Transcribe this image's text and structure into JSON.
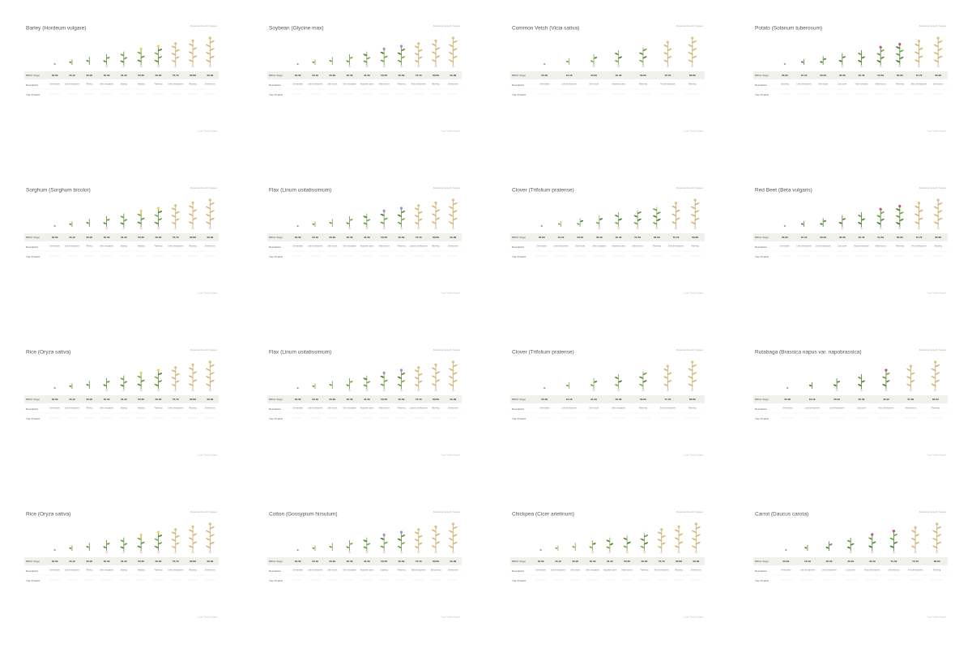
{
  "subtitle": "Botanical Growth Stages",
  "row_labels": [
    "BBCH Stage",
    "Description",
    "Your Product"
  ],
  "footer": "Crop Growth Stages",
  "panels": [
    {
      "title": "Barley (Hordeum vulgare)",
      "codes": [
        "00-09",
        "10-19",
        "20-29",
        "30-39",
        "40-49",
        "50-59",
        "60-69",
        "70-79",
        "80-89",
        "90-99"
      ],
      "descriptions": [
        "Germination",
        "Leaf development",
        "Tillering",
        "Stem elongation",
        "Booting",
        "Heading",
        "Flowering",
        "Grain development",
        "Ripening",
        "Senescence"
      ]
    },
    {
      "title": "Soybean (Glycine max)",
      "codes": [
        "00-09",
        "10-19",
        "20-29",
        "30-39",
        "40-49",
        "50-59",
        "60-69",
        "70-79",
        "80-89",
        "90-99"
      ],
      "descriptions": [
        "Germination",
        "Leaf development",
        "Side shoots",
        "Stem elongation",
        "Vegetative parts",
        "Inflorescence",
        "Flowering",
        "Pod development",
        "Ripening",
        "Senescence"
      ]
    },
    {
      "title": "Common Vetch (Vicia sativa)",
      "codes": [
        "00-09",
        "10-19",
        "20-29",
        "40-49",
        "60-69",
        "70-79",
        "80-89"
      ],
      "descriptions": [
        "Germination",
        "Leaf development",
        "Side shoots",
        "Vegetative parts",
        "Flowering",
        "Pod development",
        "Ripening"
      ]
    },
    {
      "title": "Potato (Solanum tuberosum)",
      "codes": [
        "00-09",
        "10-19",
        "20-29",
        "30-39",
        "40-49",
        "50-59",
        "60-69",
        "70-79",
        "90-99"
      ],
      "descriptions": [
        "Sprouting",
        "Leaf development",
        "Side shoots",
        "Crop cover",
        "Tuber formation",
        "Inflorescence",
        "Flowering",
        "Berry development",
        "Senescence"
      ]
    },
    {
      "title": "Sorghum (Sorghum bicolor)",
      "codes": [
        "00-09",
        "10-19",
        "20-29",
        "30-39",
        "40-49",
        "50-59",
        "60-69",
        "70-79",
        "80-89",
        "90-99"
      ],
      "descriptions": [
        "Germination",
        "Leaf development",
        "Tillering",
        "Stem elongation",
        "Booting",
        "Heading",
        "Flowering",
        "Grain development",
        "Ripening",
        "Senescence"
      ]
    },
    {
      "title": "Flax (Linum usitatissimum)",
      "codes": [
        "00-09",
        "10-19",
        "20-29",
        "30-39",
        "40-49",
        "50-59",
        "60-69",
        "70-79",
        "80-89",
        "90-99"
      ],
      "descriptions": [
        "Germination",
        "Leaf development",
        "Side shoots",
        "Stem elongation",
        "Vegetative parts",
        "Inflorescence",
        "Flowering",
        "Capsule development",
        "Ripening",
        "Senescence"
      ]
    },
    {
      "title": "Clover (Trifolium pratense)",
      "codes": [
        "00-09",
        "10-19",
        "20-29",
        "30-39",
        "40-49",
        "51-59",
        "60-69",
        "70-79",
        "80-89"
      ],
      "descriptions": [
        "Germination",
        "Leaf development",
        "Side shoots",
        "Stem elongation",
        "Vegetative parts",
        "Inflorescence",
        "Flowering",
        "Seed development",
        "Ripening"
      ]
    },
    {
      "title": "Red Beet (Beta vulgaris)",
      "codes": [
        "00-09",
        "10-19",
        "20-29",
        "30-39",
        "40-49",
        "51-59",
        "60-69",
        "70-79",
        "80-89"
      ],
      "descriptions": [
        "Germination",
        "Leaf development",
        "Leaf development",
        "Crop cover",
        "Root development",
        "Inflorescence",
        "Flowering",
        "Fruit development",
        "Ripening"
      ]
    },
    {
      "title": "Rice (Oryza sativa)",
      "codes": [
        "00-09",
        "10-19",
        "20-29",
        "30-39",
        "40-49",
        "50-59",
        "60-69",
        "70-79",
        "80-89",
        "90-99"
      ],
      "descriptions": [
        "Germination",
        "Leaf development",
        "Tillering",
        "Stem elongation",
        "Booting",
        "Heading",
        "Flowering",
        "Grain development",
        "Ripening",
        "Senescence"
      ]
    },
    {
      "title": "Flax (Linum usitatissimum)",
      "codes": [
        "00-09",
        "10-19",
        "20-29",
        "30-39",
        "40-49",
        "50-59",
        "60-69",
        "70-79",
        "80-89",
        "90-99"
      ],
      "descriptions": [
        "Germination",
        "Leaf development",
        "Side shoots",
        "Stem elongation",
        "Vegetative parts",
        "Inflorescence",
        "Flowering",
        "Capsule development",
        "Ripening",
        "Senescence"
      ]
    },
    {
      "title": "Clover (Trifolium pratense)",
      "codes": [
        "00-09",
        "10-19",
        "21-29",
        "30-39",
        "60-69",
        "71-79",
        "80-89"
      ],
      "descriptions": [
        "Germination",
        "Leaf development",
        "Side shoots",
        "Stem elongation",
        "Flowering",
        "Seed development",
        "Ripening"
      ]
    },
    {
      "title": "Rutabaga (Brassica napus var. napobrassica)",
      "codes": [
        "00-09",
        "10-19",
        "20-29",
        "30-39",
        "40-49",
        "51-59",
        "60-69"
      ],
      "descriptions": [
        "Germination",
        "Leaf development",
        "Leaf development",
        "Crop cover",
        "Root development",
        "Inflorescence",
        "Flowering"
      ]
    },
    {
      "title": "Rice (Oryza sativa)",
      "codes": [
        "00-09",
        "10-19",
        "20-29",
        "30-39",
        "40-49",
        "50-59",
        "60-69",
        "70-79",
        "80-89",
        "90-99"
      ],
      "descriptions": [
        "Germination",
        "Leaf development",
        "Tillering",
        "Stem elongation",
        "Booting",
        "Heading",
        "Flowering",
        "Grain development",
        "Ripening",
        "Senescence"
      ]
    },
    {
      "title": "Cotton (Gossypium hirsutum)",
      "codes": [
        "00-09",
        "10-19",
        "20-29",
        "30-39",
        "40-49",
        "50-59",
        "60-69",
        "70-79",
        "80-89",
        "90-99"
      ],
      "descriptions": [
        "Germination",
        "Leaf development",
        "Side shoots",
        "Stem elongation",
        "Vegetative parts",
        "Squaring",
        "Flowering",
        "Boll development",
        "Boll opening",
        "Senescence"
      ]
    },
    {
      "title": "Chickpea (Cicer arietinum)",
      "codes": [
        "00-09",
        "10-19",
        "20-29",
        "30-39",
        "40-49",
        "50-59",
        "60-69",
        "70-79",
        "80-89",
        "90-99"
      ],
      "descriptions": [
        "Germination",
        "Leaf development",
        "Side shoots",
        "Stem elongation",
        "Vegetative parts",
        "Inflorescence",
        "Flowering",
        "Pod development",
        "Ripening",
        "Senescence"
      ]
    },
    {
      "title": "Carrot (Daucus carota)",
      "codes": [
        "00-09",
        "10-19",
        "20-29",
        "30-39",
        "40-49",
        "51-59",
        "70-79",
        "80-89"
      ],
      "descriptions": [
        "Germination",
        "Leaf development",
        "Leaf development",
        "Crop cover",
        "Root development",
        "Inflorescence",
        "Fruit development",
        "Ripening"
      ]
    }
  ]
}
